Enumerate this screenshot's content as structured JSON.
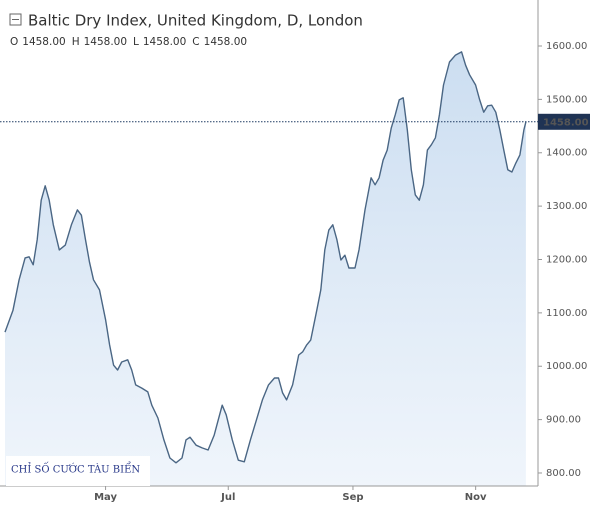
{
  "chart_data": {
    "type": "area",
    "title": "Baltic Dry Index, United Kingdom, D, London",
    "ohlc": [
      {
        "label": "O",
        "value": "1458.00"
      },
      {
        "label": "H",
        "value": "1458.00"
      },
      {
        "label": "L",
        "value": "1458.00"
      },
      {
        "label": "C",
        "value": "1458.00"
      }
    ],
    "watermark": "CHỈ SỐ CƯỚC TÀU BIỂN",
    "last_price": {
      "value": 1458,
      "label": "1458.00"
    },
    "color": "#4a6684",
    "fill": "#d6e6f5",
    "x": [
      71,
      75,
      78,
      81,
      83,
      85,
      87,
      89,
      91,
      93,
      95,
      98,
      101,
      104,
      107,
      109,
      111,
      113,
      115,
      118,
      121,
      123,
      125,
      127,
      129,
      132,
      134,
      136,
      139,
      142,
      144,
      147,
      150,
      153,
      156,
      159,
      161,
      163,
      166,
      169,
      172,
      175,
      177,
      179,
      181,
      184,
      187,
      190,
      193,
      196,
      199,
      202,
      205,
      207,
      209,
      211,
      214,
      217,
      219,
      221,
      223,
      226,
      228,
      230,
      232,
      234,
      236,
      238,
      240,
      242,
      245,
      247,
      250,
      253,
      255,
      257,
      259,
      261,
      263,
      265,
      267,
      269,
      271,
      273,
      275,
      277,
      279,
      281,
      283,
      285,
      287,
      289,
      292,
      295,
      298,
      300,
      302,
      305,
      307,
      309,
      311,
      313,
      315,
      317,
      319,
      321,
      323,
      325,
      327,
      329,
      330
    ],
    "values": [
      1064,
      1105,
      1162,
      1203,
      1205,
      1190,
      1237,
      1311,
      1338,
      1311,
      1265,
      1218,
      1227,
      1265,
      1293,
      1283,
      1237,
      1195,
      1162,
      1143,
      1087,
      1040,
      1002,
      993,
      1008,
      1012,
      993,
      965,
      959,
      952,
      927,
      903,
      862,
      828,
      819,
      828,
      862,
      867,
      852,
      847,
      843,
      871,
      899,
      927,
      909,
      862,
      824,
      821,
      862,
      899,
      937,
      965,
      978,
      978,
      950,
      937,
      965,
      1021,
      1027,
      1040,
      1049,
      1105,
      1143,
      1218,
      1255,
      1265,
      1237,
      1199,
      1208,
      1184,
      1184,
      1218,
      1293,
      1353,
      1340,
      1353,
      1386,
      1405,
      1446,
      1471,
      1499,
      1503,
      1443,
      1368,
      1321,
      1311,
      1340,
      1405,
      1415,
      1428,
      1471,
      1527,
      1570,
      1583,
      1589,
      1564,
      1546,
      1527,
      1499,
      1476,
      1488,
      1489,
      1476,
      1443,
      1405,
      1368,
      1364,
      1381,
      1396,
      1443,
      1458
    ],
    "xlim": [
      71,
      336
    ],
    "xticks": [
      {
        "value": 121,
        "label": "May"
      },
      {
        "value": 182,
        "label": "Jul"
      },
      {
        "value": 244,
        "label": "Sep"
      },
      {
        "value": 305,
        "label": "Nov"
      }
    ],
    "ylim": [
      775.6,
      1686.2
    ],
    "yticks": [
      {
        "value": 800,
        "label": "800.00"
      },
      {
        "value": 900,
        "label": "900.00"
      },
      {
        "value": 1000,
        "label": "1000.00"
      },
      {
        "value": 1100,
        "label": "1100.00"
      },
      {
        "value": 1200,
        "label": "1200.00"
      },
      {
        "value": 1300,
        "label": "1300.00"
      },
      {
        "value": 1400,
        "label": "1400.00"
      },
      {
        "value": 1500,
        "label": "1500.00"
      },
      {
        "value": 1600,
        "label": "1600.00"
      }
    ]
  }
}
